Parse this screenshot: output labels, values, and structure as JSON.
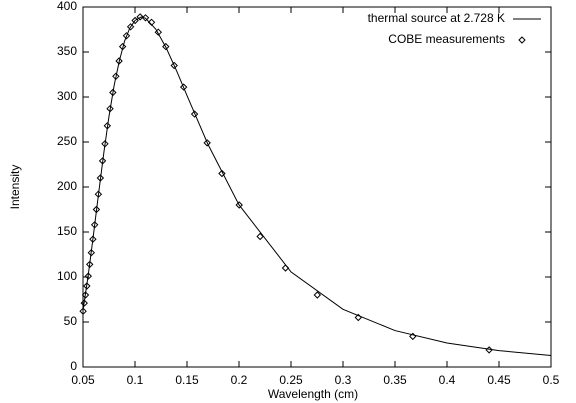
{
  "chart_data": {
    "type": "line",
    "xlabel": "Wavelength (cm)",
    "ylabel": "Intensity",
    "xlim": [
      0.05,
      0.5
    ],
    "ylim": [
      0,
      400
    ],
    "xticks": [
      0.05,
      0.1,
      0.15,
      0.2,
      0.25,
      0.3,
      0.35,
      0.4,
      0.45,
      0.5
    ],
    "yticks": [
      0,
      50,
      100,
      150,
      200,
      250,
      300,
      350,
      400
    ],
    "grid": false,
    "legend": "upper right",
    "series": [
      {
        "name": "thermal source at 2.728 K",
        "color": "#000000",
        "style": "line",
        "x": [
          0.05,
          0.055,
          0.06,
          0.065,
          0.07,
          0.075,
          0.08,
          0.085,
          0.09,
          0.095,
          0.1,
          0.106,
          0.11,
          0.12,
          0.13,
          0.14,
          0.15,
          0.17,
          0.2,
          0.25,
          0.3,
          0.35,
          0.4,
          0.45,
          0.5
        ],
        "values": [
          62.8,
          101.8,
          146.4,
          192.9,
          237.9,
          278.6,
          313.2,
          340.4,
          362.2,
          376.6,
          385.0,
          389.0,
          387.6,
          375.4,
          354.6,
          329.1,
          301.6,
          247.8,
          180.2,
          105.7,
          64.1,
          40.5,
          26.7,
          18.2,
          12.8
        ]
      },
      {
        "name": "COBE measurements",
        "color": "#000000",
        "style": "points",
        "x": [
          0.4405,
          0.3671,
          0.3147,
          0.2753,
          0.2447,
          0.2203,
          0.2002,
          0.1836,
          0.1694,
          0.1573,
          0.1468,
          0.1377,
          0.1296,
          0.1224,
          0.1159,
          0.1101,
          0.1049,
          0.1001,
          0.0958,
          0.0918,
          0.0881,
          0.0847,
          0.0816,
          0.0787,
          0.076,
          0.0734,
          0.0711,
          0.0688,
          0.0667,
          0.0648,
          0.0629,
          0.0612,
          0.0595,
          0.058,
          0.0565,
          0.0551,
          0.0537,
          0.0524,
          0.0512,
          0.0501
        ],
        "values": [
          19,
          34,
          55,
          80,
          110,
          145,
          180,
          215,
          249,
          281,
          311,
          335,
          356,
          372,
          383,
          388,
          389,
          385,
          378,
          368,
          356,
          340,
          323,
          305,
          287,
          268,
          248,
          229,
          210,
          192,
          175,
          158,
          142,
          127,
          114,
          101,
          90,
          80,
          71,
          62
        ]
      }
    ]
  }
}
